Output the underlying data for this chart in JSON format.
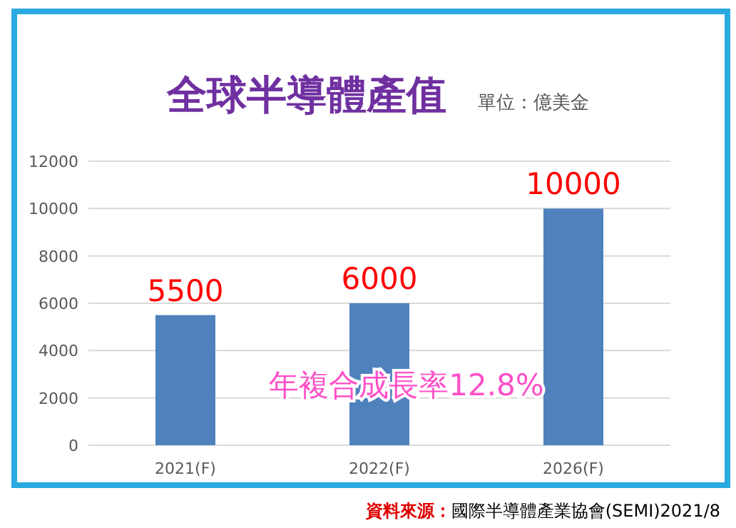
{
  "chart_data": {
    "type": "bar",
    "title": "全球半導體產值",
    "subtitle": "單位：億美金",
    "categories": [
      "2021(F)",
      "2022(F)",
      "2026(F)"
    ],
    "values": [
      5500,
      6000,
      10000
    ],
    "color": "#4f81bd",
    "data_labels": true,
    "ylim": [
      0,
      12000
    ],
    "yticks": [
      0,
      2000,
      4000,
      6000,
      8000,
      10000,
      12000
    ],
    "grid": "y",
    "annotations": [
      "年複合成長率12.8%",
      "**資料來源：**國際半導體產業協會(SEMI)2021/8"
    ]
  }
}
